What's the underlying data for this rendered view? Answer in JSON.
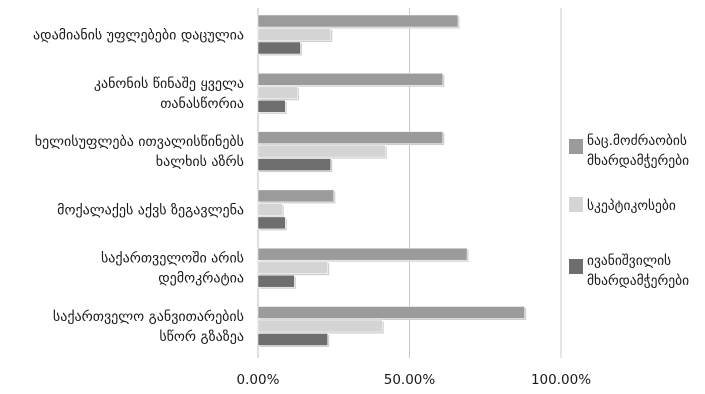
{
  "chart_data": {
    "type": "bar",
    "orientation": "horizontal",
    "categories": [
      [
        "ადამიანის უფლებები დაცულია"
      ],
      [
        "კანონის წინაშე ყველა",
        "თანასწორია"
      ],
      [
        "ხელისუფლება ითვალისწინებს",
        "ხალხის აზრს"
      ],
      [
        "მოქალაქეს აქვს ზეგავლენა"
      ],
      [
        "საქართველოში არის",
        "დემოკრატია"
      ],
      [
        "საქართველო განვითარების",
        "სწორ გზაზეა"
      ]
    ],
    "series": [
      {
        "name": "ნაც.მოძრაობის მხარდამჭერები",
        "values": [
          0.66,
          0.61,
          0.61,
          0.25,
          0.69,
          0.88
        ],
        "color": "#9b9b9b"
      },
      {
        "name": "სკეპტიკოსები",
        "values": [
          0.24,
          0.13,
          0.42,
          0.08,
          0.23,
          0.41
        ],
        "color": "#d4d4d4"
      },
      {
        "name": "ივანიშვილის მხარდამჭერები",
        "values": [
          0.14,
          0.09,
          0.24,
          0.09,
          0.12,
          0.23
        ],
        "color": "#6e6e6e"
      }
    ],
    "xlim": [
      0,
      1
    ],
    "xticks": [
      0,
      0.5,
      1
    ],
    "xtick_labels": [
      "0.00%",
      "50.00%",
      "100.00%"
    ],
    "grid": "vertical",
    "legend_position": "right"
  },
  "legend": [
    [
      "ნაც.მოძრაობის",
      "მხარდამჭერები"
    ],
    [
      "სკეპტიკოსები"
    ],
    [
      "ივანიშვილის",
      "მხარდამჭერები"
    ]
  ]
}
